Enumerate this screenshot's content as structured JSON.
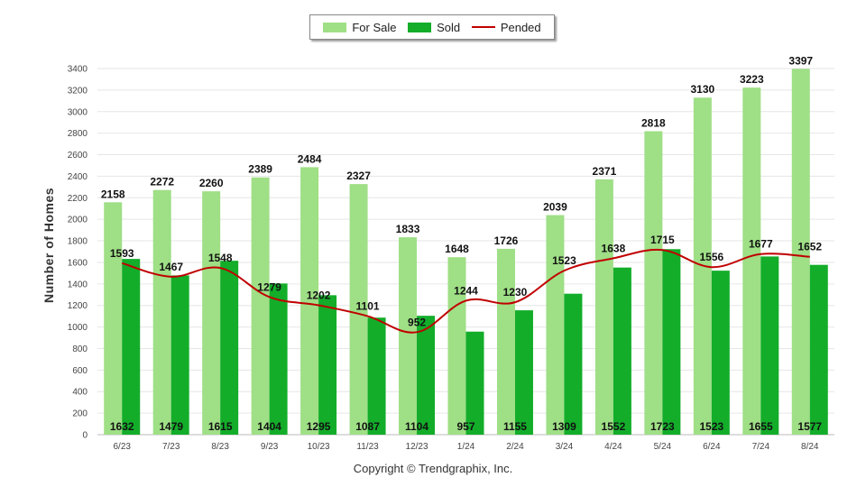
{
  "chart_data": {
    "type": "bar",
    "ylabel": "Number of Homes",
    "ylim": [
      0,
      3400
    ],
    "ytick_step": 200,
    "grid": true,
    "legend_position": "top-center",
    "categories": [
      "6/23",
      "7/23",
      "8/23",
      "9/23",
      "10/23",
      "11/23",
      "12/23",
      "1/24",
      "2/24",
      "3/24",
      "4/24",
      "5/24",
      "6/24",
      "7/24",
      "8/24"
    ],
    "series": [
      {
        "name": "For Sale",
        "kind": "bar",
        "color": "#9fdf86",
        "values": [
          2158,
          2272,
          2260,
          2389,
          2484,
          2327,
          1833,
          1648,
          1726,
          2039,
          2371,
          2818,
          3130,
          3223,
          3397
        ]
      },
      {
        "name": "Sold",
        "kind": "bar",
        "color": "#13ad2a",
        "values": [
          1632,
          1479,
          1615,
          1404,
          1295,
          1087,
          1104,
          957,
          1155,
          1309,
          1552,
          1723,
          1523,
          1655,
          1577
        ]
      },
      {
        "name": "Pended",
        "kind": "line",
        "color": "#c00000",
        "values": [
          1593,
          1467,
          1548,
          1279,
          1202,
          1101,
          952,
          1244,
          1230,
          1523,
          1638,
          1715,
          1556,
          1677,
          1652
        ]
      }
    ]
  },
  "legend": {
    "for_sale": "For Sale",
    "sold": "Sold",
    "pended": "Pended"
  },
  "footer": {
    "copyright": "Copyright © Trendgraphix, Inc."
  }
}
